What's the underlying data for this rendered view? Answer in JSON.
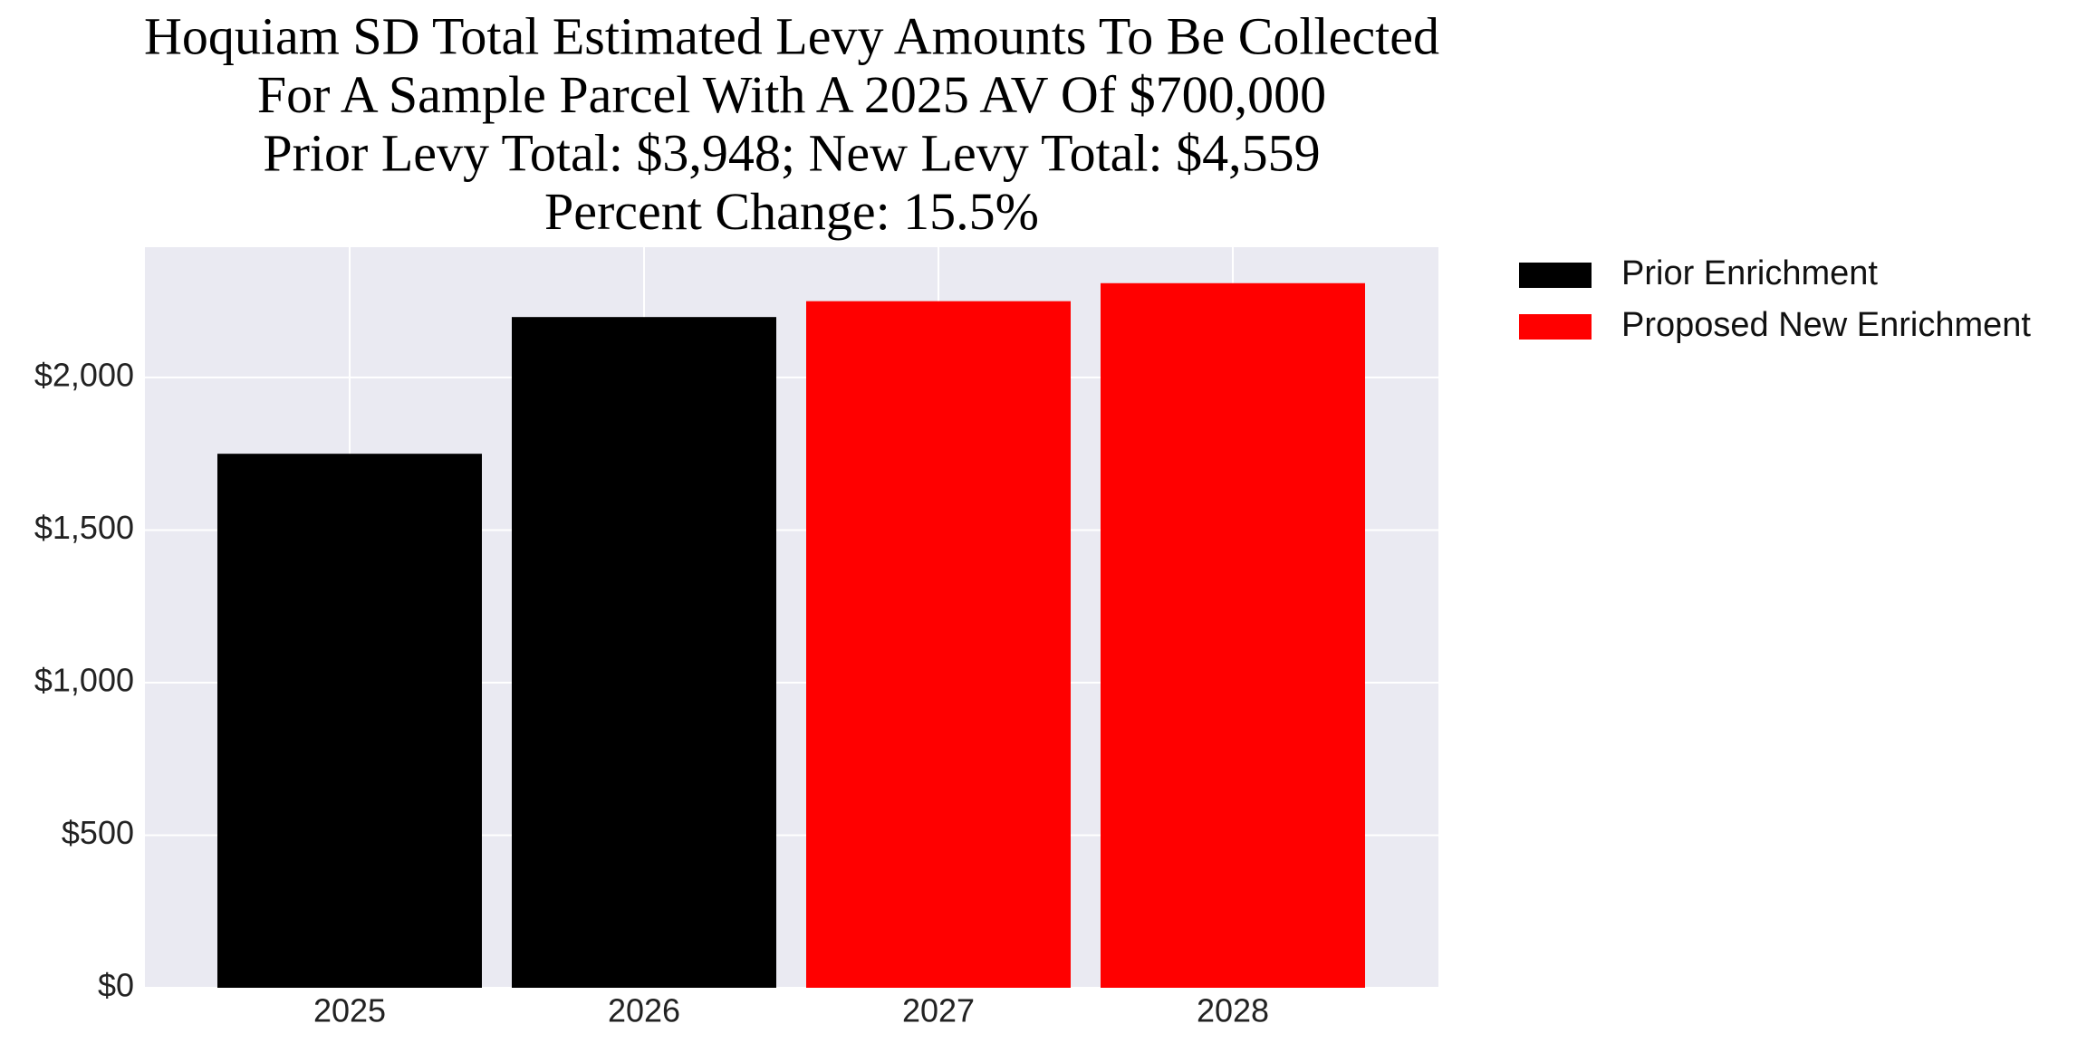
{
  "chart_data": {
    "type": "bar",
    "title": [
      "Hoquiam SD Total Estimated Levy Amounts To Be Collected",
      "For A Sample Parcel With A 2025 AV Of $700,000",
      "Prior Levy Total:  $3,948; New Levy Total: $4,559",
      "Percent Change: 15.5%"
    ],
    "categories": [
      "2025",
      "2026",
      "2027",
      "2028"
    ],
    "series": [
      {
        "name": "Prior Enrichment",
        "color": "#000000",
        "values": [
          1750,
          2198,
          null,
          null
        ]
      },
      {
        "name": "Proposed New Enrichment",
        "color": "#ff0000",
        "values": [
          null,
          null,
          2250,
          2309
        ]
      }
    ],
    "ylim": [
      0,
      2427
    ],
    "yticks": [
      {
        "value": 0,
        "label": "$0"
      },
      {
        "value": 500,
        "label": "$500"
      },
      {
        "value": 1000,
        "label": "$1,000"
      },
      {
        "value": 1500,
        "label": "$1,500"
      },
      {
        "value": 2000,
        "label": "$2,000"
      }
    ],
    "grid": true,
    "legend": "outside-upper-right"
  }
}
